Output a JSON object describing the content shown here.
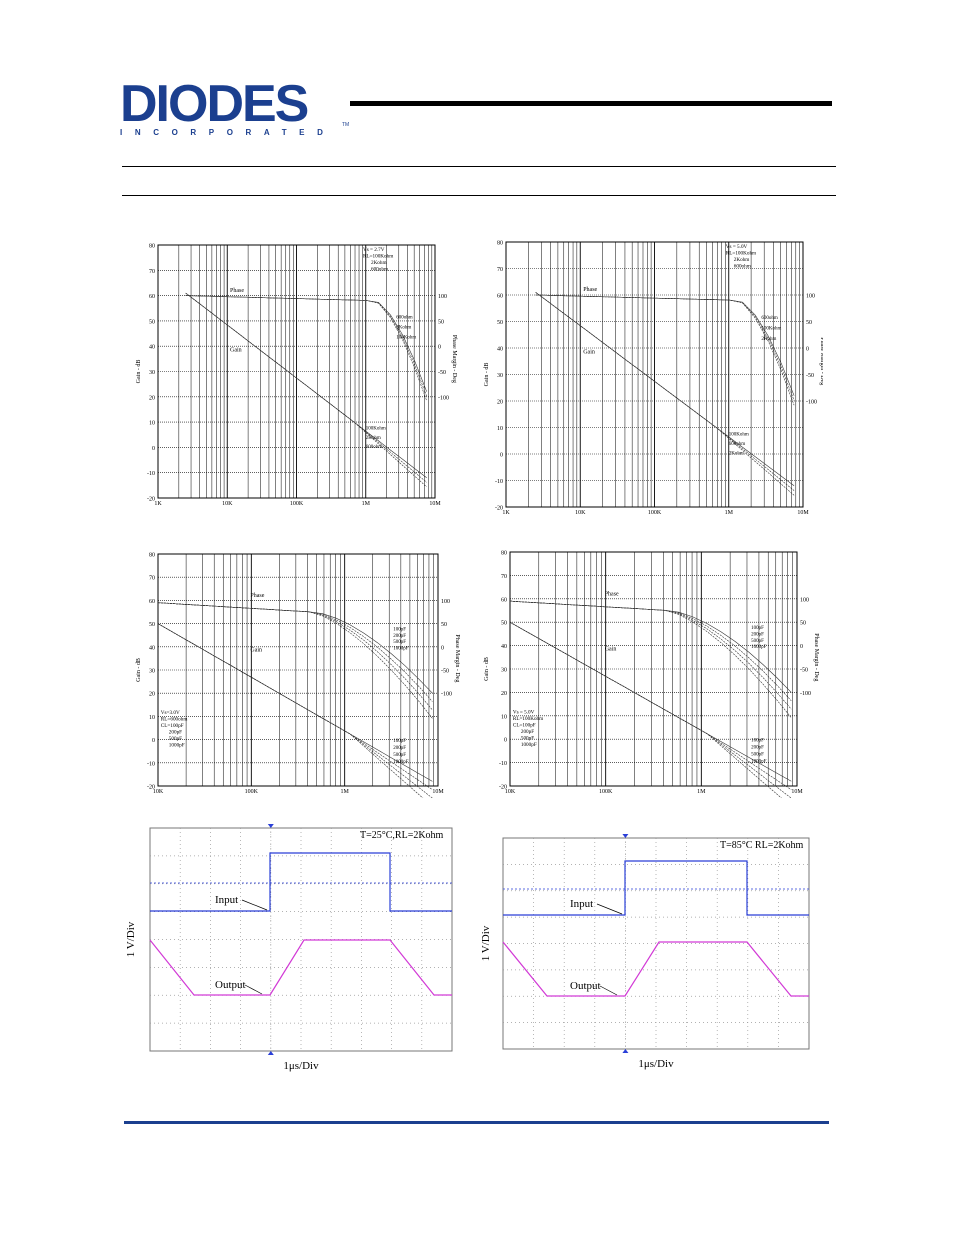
{
  "header": {
    "logo_text": "DIODES",
    "logo_subtext": "INCORPORATED",
    "logo_tm": "TM"
  },
  "colors": {
    "brand": "#1b3f8f",
    "input_trace": "#2a3fd8",
    "output_trace": "#d23ad6",
    "grid": "#000000"
  },
  "bode_charts": [
    {
      "type": "line",
      "conditions": [
        "Vs = 2.7V",
        "RL=100Kohm",
        "2Kohm",
        "600ohm"
      ],
      "phase_label": "Phase",
      "gain_label": "Gain",
      "ylabel_left": "Gain - dB",
      "ylabel_right": "Phase Margin - Deg",
      "y_ticks": [
        "80",
        "70",
        "60",
        "50",
        "40",
        "30",
        "20",
        "10",
        "0",
        "-10",
        "-20"
      ],
      "right_ticks": [
        "100",
        "50",
        "0",
        "-50",
        "-100"
      ],
      "x_ticks": [
        "1K",
        "10K",
        "100K",
        "1M",
        "10M"
      ],
      "phase_curve_labels": [
        "600ohm",
        "2Kohm",
        "100Kohm"
      ],
      "gain_curve_labels": [
        "100Kohm",
        "2Kohm",
        "600ohm"
      ]
    },
    {
      "type": "line",
      "conditions": [
        "Vs = 5.0V",
        "RL=100Kohm",
        "2Kohm",
        "600ohm"
      ],
      "phase_label": "Phase",
      "gain_label": "Gain",
      "ylabel_left": "Gain - dB",
      "ylabel_right": "Phase Margin - Deg",
      "y_ticks": [
        "80",
        "70",
        "60",
        "50",
        "40",
        "30",
        "20",
        "10",
        "0",
        "-10",
        "-20"
      ],
      "right_ticks": [
        "100",
        "50",
        "0",
        "-50",
        "-100"
      ],
      "x_ticks": [
        "1K",
        "10K",
        "100K",
        "1M",
        "10M"
      ],
      "phase_curve_labels": [
        "600ohm",
        "100Kohm",
        "2Kohm"
      ],
      "gain_curve_labels": [
        "100Kohm",
        "600ohm",
        "2Kohm"
      ]
    },
    {
      "type": "line",
      "conditions": [
        "Vs=3.0V",
        "RL=600ohm",
        "CL=100pF",
        "200pF",
        "500pF",
        "1000pF"
      ],
      "phase_label": "Phase",
      "gain_label": "Gain",
      "ylabel_left": "Gain - dB",
      "ylabel_right": "Phase Margin - Deg",
      "y_ticks": [
        "80",
        "70",
        "60",
        "50",
        "40",
        "30",
        "20",
        "10",
        "0",
        "-10",
        "-20"
      ],
      "right_ticks": [
        "100",
        "50",
        "0",
        "-50",
        "-100"
      ],
      "x_ticks": [
        "10K",
        "100K",
        "1M",
        "10M"
      ],
      "phase_curve_labels": [
        "100pF",
        "200pF",
        "500pF",
        "1000pF"
      ],
      "gain_curve_labels": [
        "100pF",
        "200pF",
        "500pF",
        "1000pF"
      ]
    },
    {
      "type": "line",
      "conditions": [
        "Vs = 5.0V",
        "RL=100Kohm",
        "CL=100pF",
        "200pF",
        "500pF",
        "1000pF"
      ],
      "phase_label": "Phase",
      "gain_label": "Gain",
      "ylabel_left": "Gain - dB",
      "ylabel_right": "Phase Margin - Deg",
      "y_ticks": [
        "80",
        "70",
        "60",
        "50",
        "40",
        "30",
        "20",
        "10",
        "0",
        "-10",
        "-20"
      ],
      "right_ticks": [
        "100",
        "50",
        "0",
        "-50",
        "-100"
      ],
      "x_ticks": [
        "10K",
        "100K",
        "1M",
        "10M"
      ],
      "phase_curve_labels": [
        "100pF",
        "200pF",
        "500pF",
        "1000pF"
      ],
      "gain_curve_labels": [
        "100pF",
        "200pF",
        "500pF",
        "1000pF"
      ]
    }
  ],
  "scope_charts": [
    {
      "title": "T=25°C,RL=2Kohm",
      "input_label": "Input",
      "output_label": "Output",
      "ylabel": "1 V/Div",
      "xlabel": "1μs/Div"
    },
    {
      "title": "T=85°C RL=2Kohm",
      "input_label": "Input",
      "output_label": "Output",
      "ylabel": "1 V/Div",
      "xlabel": "1μs/Div"
    }
  ]
}
